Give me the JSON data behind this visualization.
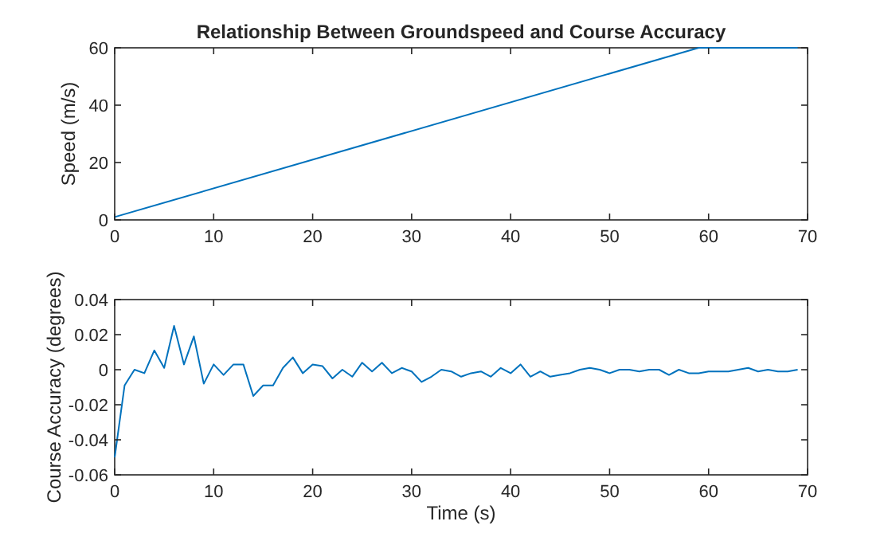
{
  "chart_data": [
    {
      "type": "line",
      "title": "Relationship Between Groundspeed and Course Accuracy",
      "ylabel": "Speed (m/s)",
      "x": [
        0,
        59,
        69
      ],
      "series": [
        {
          "color": "#0072bd",
          "values": [
            1,
            60,
            60
          ]
        }
      ],
      "xlim": [
        0,
        70
      ],
      "xticks": [
        0,
        10,
        20,
        30,
        40,
        50,
        60,
        70
      ],
      "ylim": [
        0,
        60
      ],
      "yticks": [
        0,
        20,
        40,
        60
      ],
      "grid": false
    },
    {
      "type": "line",
      "xlabel": "Time (s)",
      "ylabel": "Course Accuracy (degrees)",
      "x": [
        0,
        1,
        2,
        3,
        4,
        5,
        6,
        7,
        8,
        9,
        10,
        11,
        12,
        13,
        14,
        15,
        16,
        17,
        18,
        19,
        20,
        21,
        22,
        23,
        24,
        25,
        26,
        27,
        28,
        29,
        30,
        31,
        32,
        33,
        34,
        35,
        36,
        37,
        38,
        39,
        40,
        41,
        42,
        43,
        44,
        45,
        46,
        47,
        48,
        49,
        50,
        51,
        52,
        53,
        54,
        55,
        56,
        57,
        58,
        59,
        60,
        61,
        62,
        63,
        64,
        65,
        66,
        67,
        68,
        69
      ],
      "series": [
        {
          "color": "#0072bd",
          "values": [
            -0.05,
            -0.009,
            0,
            -0.002,
            0.011,
            0.001,
            0.025,
            0.003,
            0.019,
            -0.008,
            0.003,
            -0.003,
            0.003,
            0.003,
            -0.015,
            -0.009,
            -0.009,
            0.001,
            0.007,
            -0.002,
            0.003,
            0.002,
            -0.005,
            0,
            -0.004,
            0.004,
            -0.001,
            0.004,
            -0.002,
            0.001,
            -0.001,
            -0.007,
            -0.004,
            0,
            -0.001,
            -0.004,
            -0.002,
            -0.001,
            -0.004,
            0.001,
            -0.002,
            0.003,
            -0.004,
            -0.001,
            -0.004,
            -0.003,
            -0.002,
            0,
            0.001,
            0,
            -0.002,
            0,
            0,
            -0.001,
            0,
            0,
            -0.003,
            0,
            -0.002,
            -0.002,
            -0.001,
            -0.001,
            -0.001,
            0,
            0.001,
            -0.001,
            0,
            -0.001,
            -0.001,
            0
          ]
        }
      ],
      "xlim": [
        0,
        70
      ],
      "xticks": [
        0,
        10,
        20,
        30,
        40,
        50,
        60,
        70
      ],
      "ylim": [
        -0.06,
        0.04
      ],
      "yticks": [
        -0.06,
        -0.04,
        -0.02,
        0,
        0.02,
        0.04
      ],
      "grid": false
    }
  ]
}
